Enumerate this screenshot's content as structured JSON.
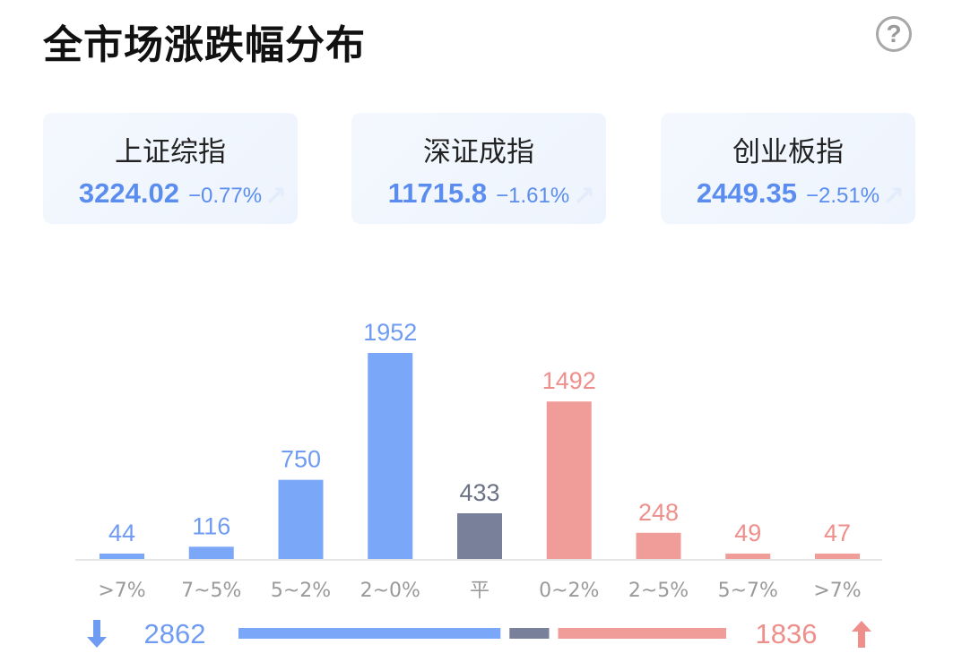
{
  "header": {
    "title": "全市场涨跌幅分布",
    "help_icon": "question-circle-icon",
    "help_label": "?"
  },
  "indices": [
    {
      "name": "上证综指",
      "value": "3224.02",
      "change": "−0.77%"
    },
    {
      "name": "深证成指",
      "value": "11715.8",
      "change": "−1.61%"
    },
    {
      "name": "创业板指",
      "value": "2449.35",
      "change": "−2.51%"
    }
  ],
  "chart_data": {
    "type": "bar",
    "categories": [
      ">7%",
      "7~5%",
      "5~2%",
      "2~0%",
      "平",
      "0~2%",
      "2~5%",
      "5~7%",
      ">7%"
    ],
    "values": [
      44,
      116,
      750,
      1952,
      433,
      1492,
      248,
      49,
      47
    ],
    "groups": [
      "down",
      "down",
      "down",
      "down",
      "flat",
      "up",
      "up",
      "up",
      "up"
    ],
    "colors": {
      "down": "#7aa7f7",
      "flat": "#788199",
      "up": "#f09c98"
    },
    "label_colors": {
      "down": "#6f9cf2",
      "flat": "#6b7285",
      "up": "#ee8f8b"
    },
    "ylim": [
      0,
      1952
    ],
    "summary": {
      "down_total": "2862",
      "flat_total": "433",
      "up_total": "1836"
    }
  },
  "footer": {
    "down_icon": "arrow-down-icon",
    "up_icon": "arrow-up-icon"
  }
}
